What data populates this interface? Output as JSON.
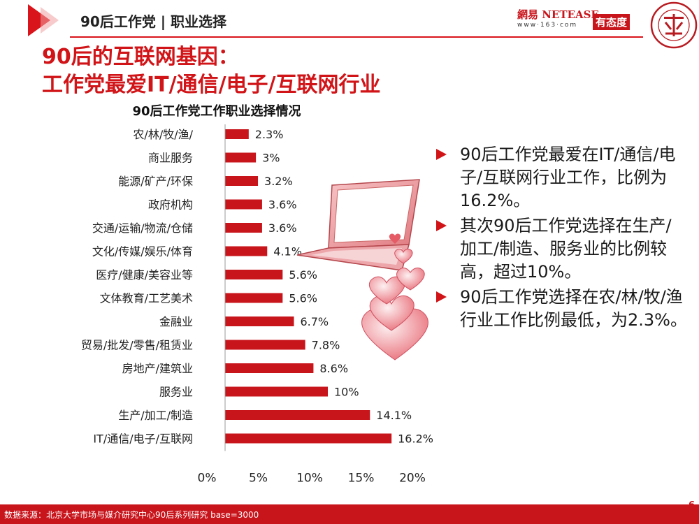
{
  "header": {
    "section_label": "90后工作党 | 职业选择",
    "logo_netease": "網易 NETEASE",
    "logo_netease_url": "www·163·com",
    "logo_youtaidu": "有态度"
  },
  "headline": {
    "line1": "90后的互联网基因：",
    "line2": "工作党最爱IT/通信/电子/互联网行业"
  },
  "chart_data": {
    "type": "bar",
    "orientation": "horizontal",
    "title": "90后工作党工作职业选择情况",
    "categories": [
      "农/林/牧/渔/",
      "商业服务",
      "能源/矿产/环保",
      "政府机构",
      "交通/运输/物流/仓储",
      "文化/传媒/娱乐/体育",
      "医疗/健康/美容业等",
      "文体教育/工艺美术",
      "金融业",
      "贸易/批发/零售/租赁业",
      "房地产/建筑业",
      "服务业",
      "生产/加工/制造",
      "IT/通信/电子/互联网"
    ],
    "values": [
      2.3,
      3,
      3.2,
      3.6,
      3.6,
      4.1,
      5.6,
      5.6,
      6.7,
      7.8,
      8.6,
      10,
      14.1,
      16.2
    ],
    "value_labels": [
      "2.3%",
      "3%",
      "3.2%",
      "3.6%",
      "3.6%",
      "4.1%",
      "5.6%",
      "5.6%",
      "6.7%",
      "7.8%",
      "8.6%",
      "10%",
      "14.1%",
      "16.2%"
    ],
    "xlim": [
      0,
      20
    ],
    "x_ticks": [
      0,
      5,
      10,
      15,
      20
    ],
    "x_tick_labels": [
      "0%",
      "5%",
      "10%",
      "15%",
      "20%"
    ],
    "grid": false,
    "bar_color": "#c8141b"
  },
  "bullets": [
    "90后工作党最爱在IT/通信/电子/互联网行业工作，比例为16.2%。",
    "其次90后工作党选择在生产/加工/制造、服务业的比例较高，超过10%。",
    "90后工作党选择在农/林/牧/渔行业工作比例最低，为2.3%。"
  ],
  "footer": {
    "source": "数据来源：北京大学市场与媒介研究中心90后系列研究 base=3000",
    "page_number": "6"
  },
  "colors": {
    "accent": "#d11418",
    "footer": "#c8141b"
  }
}
